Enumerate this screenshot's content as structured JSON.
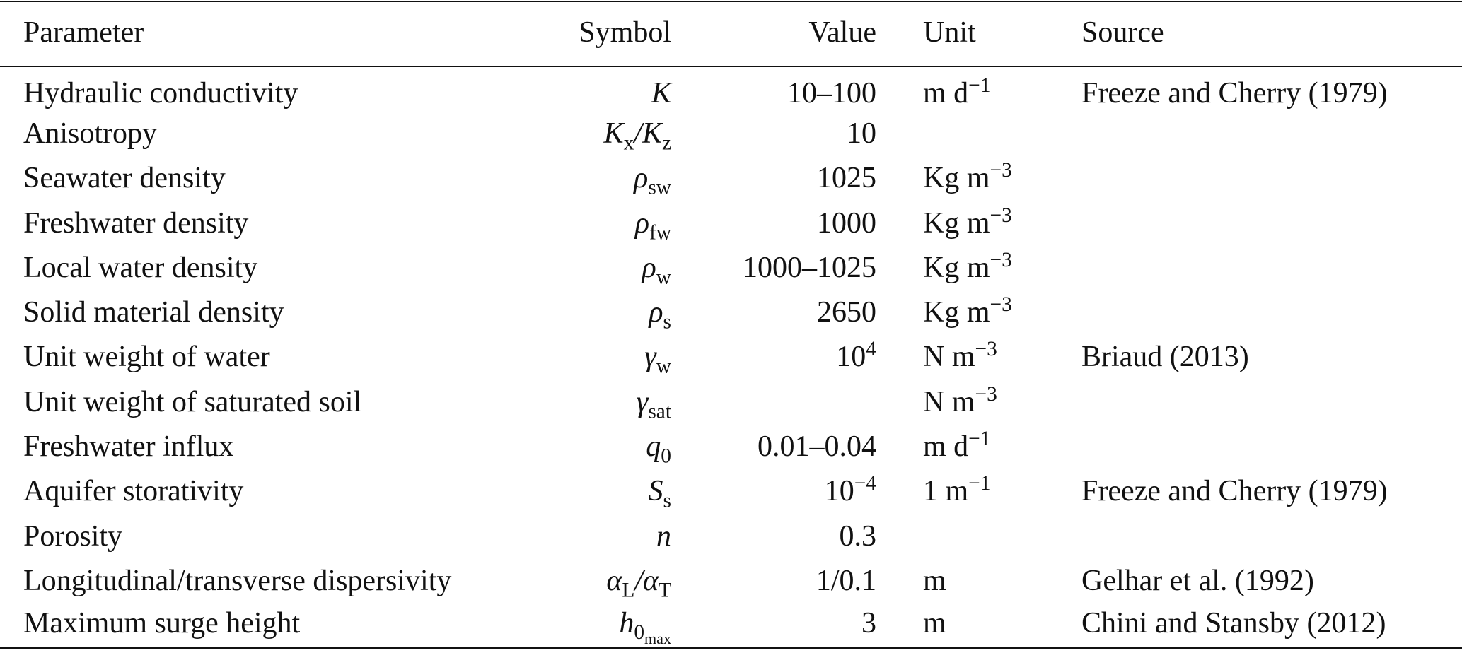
{
  "table": {
    "headers": [
      "Parameter",
      "Symbol",
      "Value",
      "Unit",
      "Source"
    ],
    "rows": [
      [
        [
          {
            "text": "Hydraulic conductivity"
          }
        ],
        [
          {
            "text": "K"
          }
        ],
        [
          {
            "text": "10–100"
          }
        ],
        [
          {
            "text": "m d",
            "sup": "−1"
          }
        ],
        [
          {
            "text": "Freeze and Cherry (1979)"
          }
        ]
      ],
      [
        [
          {
            "text": "Anisotropy"
          }
        ],
        [
          {
            "text": "K",
            "sub": "x"
          },
          {
            "text": "/"
          },
          {
            "text": "K",
            "sub": "z"
          }
        ],
        [
          {
            "text": "10"
          }
        ],
        [],
        []
      ],
      [
        [
          {
            "text": "Seawater density"
          }
        ],
        [
          {
            "text": "ρ",
            "sub": "sw"
          }
        ],
        [
          {
            "text": "1025"
          }
        ],
        [
          {
            "text": "Kg m",
            "sup": "−3"
          }
        ],
        []
      ],
      [
        [
          {
            "text": "Freshwater density"
          }
        ],
        [
          {
            "text": "ρ",
            "sub": "fw"
          }
        ],
        [
          {
            "text": "1000"
          }
        ],
        [
          {
            "text": "Kg m",
            "sup": "−3"
          }
        ],
        []
      ],
      [
        [
          {
            "text": "Local water density"
          }
        ],
        [
          {
            "text": "ρ",
            "sub": "w"
          }
        ],
        [
          {
            "text": "1000–1025"
          }
        ],
        [
          {
            "text": "Kg m",
            "sup": "−3"
          }
        ],
        []
      ],
      [
        [
          {
            "text": "Solid material density"
          }
        ],
        [
          {
            "text": "ρ",
            "sub": "s"
          }
        ],
        [
          {
            "text": "2650"
          }
        ],
        [
          {
            "text": "Kg m",
            "sup": "−3"
          }
        ],
        []
      ],
      [
        [
          {
            "text": "Unit weight of water"
          }
        ],
        [
          {
            "text": "γ",
            "sub": "w"
          }
        ],
        [
          {
            "text": "10",
            "sup": "4"
          }
        ],
        [
          {
            "text": "N m",
            "sup": "−3"
          }
        ],
        [
          {
            "text": "Briaud (2013)"
          }
        ]
      ],
      [
        [
          {
            "text": "Unit weight of saturated soil"
          }
        ],
        [
          {
            "text": "γ",
            "sub": "sat"
          }
        ],
        [],
        [
          {
            "text": "N m",
            "sup": "−3"
          }
        ],
        []
      ],
      [
        [
          {
            "text": "Freshwater influx"
          }
        ],
        [
          {
            "text": "q",
            "sub": "0"
          }
        ],
        [
          {
            "text": "0.01–0.04"
          }
        ],
        [
          {
            "text": "m d",
            "sup": "−1"
          }
        ],
        []
      ],
      [
        [
          {
            "text": "Aquifer storativity"
          }
        ],
        [
          {
            "text": "S",
            "sub": "s"
          }
        ],
        [
          {
            "text": "10",
            "sup": "−4"
          }
        ],
        [
          {
            "text": "1 m",
            "sup": "−1"
          }
        ],
        [
          {
            "text": "Freeze and Cherry (1979)"
          }
        ]
      ],
      [
        [
          {
            "text": "Porosity"
          }
        ],
        [
          {
            "text": "n"
          }
        ],
        [
          {
            "text": "0.3"
          }
        ],
        [],
        []
      ],
      [
        [
          {
            "text": "Longitudinal/transverse dispersivity"
          }
        ],
        [
          {
            "text": "α",
            "sub": "L"
          },
          {
            "text": "/"
          },
          {
            "text": "α",
            "sub": "T"
          }
        ],
        [
          {
            "text": "1/0.1"
          }
        ],
        [
          {
            "text": "m"
          }
        ],
        [
          {
            "text": "Gelhar et al. (1992)"
          }
        ]
      ],
      [
        [
          {
            "text": "Maximum surge height"
          }
        ],
        [
          {
            "text": "h",
            "sub": "0",
            "subsub": "max"
          }
        ],
        [
          {
            "text": "3"
          }
        ],
        [
          {
            "text": "m"
          }
        ],
        [
          {
            "text": "Chini and Stansby (2012)"
          }
        ]
      ]
    ]
  }
}
